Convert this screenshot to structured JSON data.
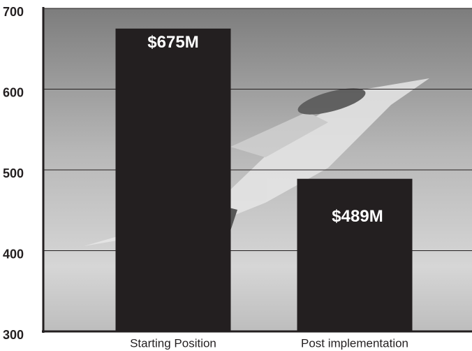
{
  "chart_data": {
    "type": "bar",
    "categories": [
      "Starting Position",
      "Post implementation"
    ],
    "values": [
      675,
      489
    ],
    "value_labels": [
      "$675M",
      "$489M"
    ],
    "color": "#231f20",
    "ylim": [
      300,
      700
    ],
    "yticks": [
      300,
      400,
      500,
      600,
      700
    ],
    "grid": true
  }
}
